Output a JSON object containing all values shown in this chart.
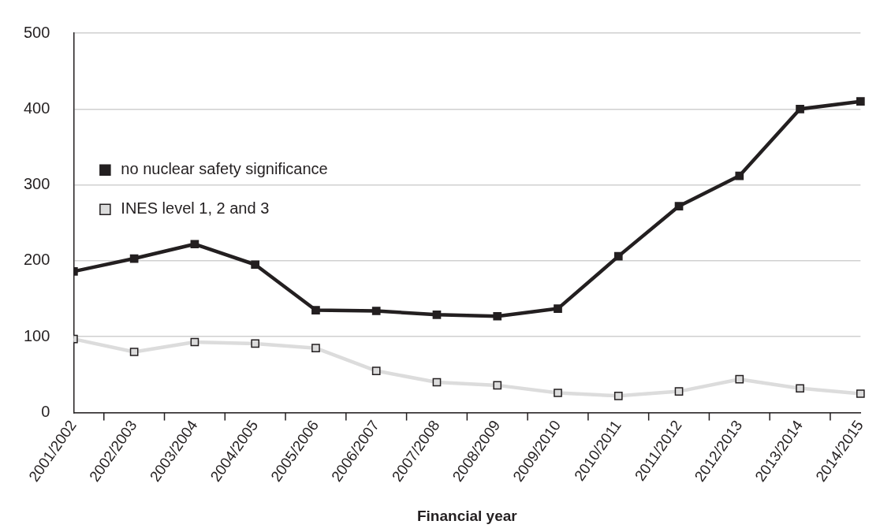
{
  "chart_data": {
    "type": "line",
    "xlabel": "Financial year",
    "categories": [
      "2001/2002",
      "2002/2003",
      "2003/2004",
      "2004/2005",
      "2005/2006",
      "2006/2007",
      "2007/2008",
      "2008/2009",
      "2009/2010",
      "2010/2011",
      "2011/2012",
      "2012/2013",
      "2013/2014",
      "2014/2015"
    ],
    "series": [
      {
        "name": "no nuclear safety significance",
        "color": "#231f20",
        "values": [
          186,
          203,
          222,
          195,
          135,
          134,
          129,
          127,
          137,
          206,
          272,
          312,
          400,
          410
        ]
      },
      {
        "name": "INES level 1, 2 and 3",
        "color": "#dcdcdc",
        "values": [
          97,
          80,
          93,
          91,
          85,
          55,
          40,
          36,
          26,
          22,
          28,
          44,
          32,
          25
        ]
      }
    ],
    "ylim": [
      0,
      500
    ],
    "yticks": [
      0,
      100,
      200,
      300,
      400,
      500
    ],
    "grid": "y",
    "legend": "top",
    "marker": "square",
    "line_style": "solid"
  }
}
